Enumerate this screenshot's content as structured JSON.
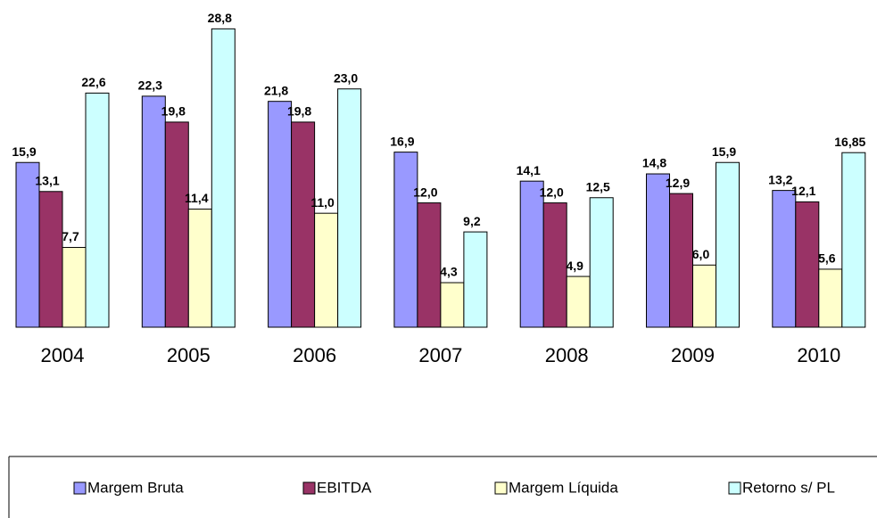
{
  "chart_data": {
    "type": "bar",
    "categories": [
      "2004",
      "2005",
      "2006",
      "2007",
      "2008",
      "2009",
      "2010"
    ],
    "series": [
      {
        "name": "Margem Bruta",
        "color": "#9999ff",
        "values": [
          15.9,
          22.3,
          21.8,
          16.9,
          14.1,
          14.8,
          13.2
        ],
        "value_labels": [
          "15,9",
          "22,3",
          "21,8",
          "16,9",
          "14,1",
          "14,8",
          "13,2"
        ]
      },
      {
        "name": "EBITDA",
        "color": "#993366",
        "values": [
          13.1,
          19.8,
          19.8,
          12.0,
          12.0,
          12.9,
          12.1
        ],
        "value_labels": [
          "13,1",
          "19,8",
          "19,8",
          "12,0",
          "12,0",
          "12,9",
          "12,1"
        ]
      },
      {
        "name": "Margem Líquida",
        "color": "#ffffcc",
        "values": [
          7.7,
          11.4,
          11.0,
          4.3,
          4.9,
          6.0,
          5.6
        ],
        "value_labels": [
          "7,7",
          "11,4",
          "11,0",
          "4,3",
          "4,9",
          "6,0",
          "5,6"
        ]
      },
      {
        "name": "Retorno s/ PL",
        "color": "#ccffff",
        "values": [
          22.6,
          28.8,
          23.0,
          9.2,
          12.5,
          15.9,
          16.85
        ],
        "value_labels": [
          "22,6",
          "28,8",
          "23,0",
          "9,2",
          "12,5",
          "15,9",
          "16,85"
        ]
      }
    ],
    "legend": "bottom"
  }
}
